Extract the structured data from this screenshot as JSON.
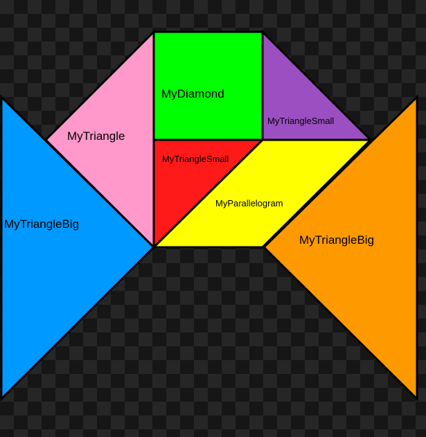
{
  "colors": {
    "checker_light": "#262626",
    "checker_dark": "#161616",
    "outline": "#000000"
  },
  "pieces": {
    "triangle_big_left": {
      "label": "MyTriangleBig",
      "color": "#0099ff"
    },
    "triangle": {
      "label": "MyTriangle",
      "color": "#ff99cc"
    },
    "diamond": {
      "label": "MyDiamond",
      "color": "#00ff00"
    },
    "triangle_small_top": {
      "label": "MyTriangleSmall",
      "color": "#9b4fc0"
    },
    "triangle_small_red": {
      "label": "MyTriangleSmall",
      "color": "#ff1a1a"
    },
    "parallelogram": {
      "label": "MyParallelogram",
      "color": "#ffff00"
    },
    "triangle_big_right": {
      "label": "MyTriangleBig",
      "color": "#ff9900"
    }
  }
}
